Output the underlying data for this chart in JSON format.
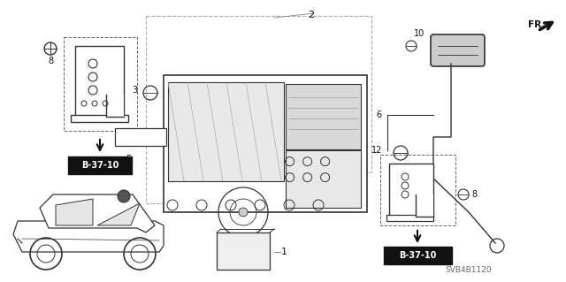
{
  "bg_color": "#ffffff",
  "line_color": "#333333",
  "dark_color": "#111111",
  "gray_color": "#888888",
  "part_number": "SVB4B1120",
  "fr_label": "FR."
}
